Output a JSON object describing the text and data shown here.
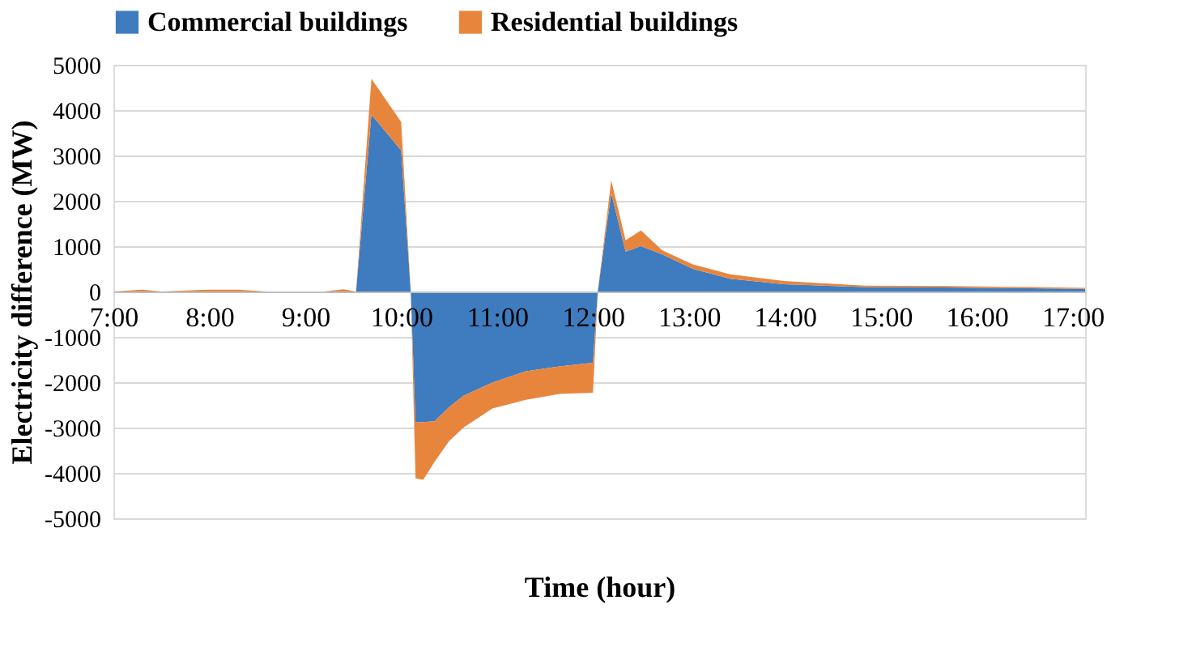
{
  "chart_data": {
    "type": "area",
    "stacked": true,
    "xlabel": "Time (hour)",
    "ylabel": "Electricity difference (MW)",
    "legend": "top",
    "grid": "y",
    "x": [
      7.0,
      7.3,
      7.5,
      8.0,
      8.3,
      8.6,
      9.2,
      9.4,
      9.53,
      9.69,
      10.0,
      10.1,
      10.15,
      10.23,
      10.35,
      10.5,
      10.65,
      10.95,
      11.3,
      11.65,
      12.0,
      12.05,
      12.19,
      12.34,
      12.5,
      12.72,
      13.04,
      13.43,
      13.99,
      14.83,
      15.67,
      16.51,
      17.13
    ],
    "xlim": [
      7.0,
      17.13
    ],
    "xticks": [
      {
        "value": 7,
        "label": "7:00"
      },
      {
        "value": 8,
        "label": "8:00"
      },
      {
        "value": 9,
        "label": "9:00"
      },
      {
        "value": 10,
        "label": "10:00"
      },
      {
        "value": 11,
        "label": "11:00"
      },
      {
        "value": 12,
        "label": "12:00"
      },
      {
        "value": 13,
        "label": "13:00"
      },
      {
        "value": 14,
        "label": "14:00"
      },
      {
        "value": 15,
        "label": "15:00"
      },
      {
        "value": 16,
        "label": "16:00"
      },
      {
        "value": 17,
        "label": "17:00"
      }
    ],
    "ylim": [
      -5000,
      5000
    ],
    "yticks": [
      -5000,
      -4000,
      -3000,
      -2000,
      -1000,
      0,
      1000,
      2000,
      3000,
      4000,
      5000
    ],
    "series": [
      {
        "name": "Commercial buildings",
        "color": "#3e7cbf",
        "values": [
          0,
          0,
          0,
          0,
          0,
          0,
          0,
          0,
          0,
          3900,
          3110,
          0,
          -2890,
          -2880,
          -2860,
          -2550,
          -2300,
          -2010,
          -1760,
          -1650,
          -1570,
          0,
          2170,
          880,
          1000,
          820,
          500,
          280,
          160,
          100,
          90,
          70,
          60
        ]
      },
      {
        "name": "Residential buildings",
        "color": "#e8853d",
        "values": [
          0,
          40,
          0,
          40,
          40,
          0,
          0,
          50,
          0,
          790,
          630,
          0,
          -1230,
          -1270,
          -890,
          -750,
          -700,
          -570,
          -630,
          -610,
          -660,
          0,
          280,
          250,
          350,
          90,
          100,
          100,
          70,
          30,
          30,
          30,
          20
        ]
      }
    ]
  }
}
